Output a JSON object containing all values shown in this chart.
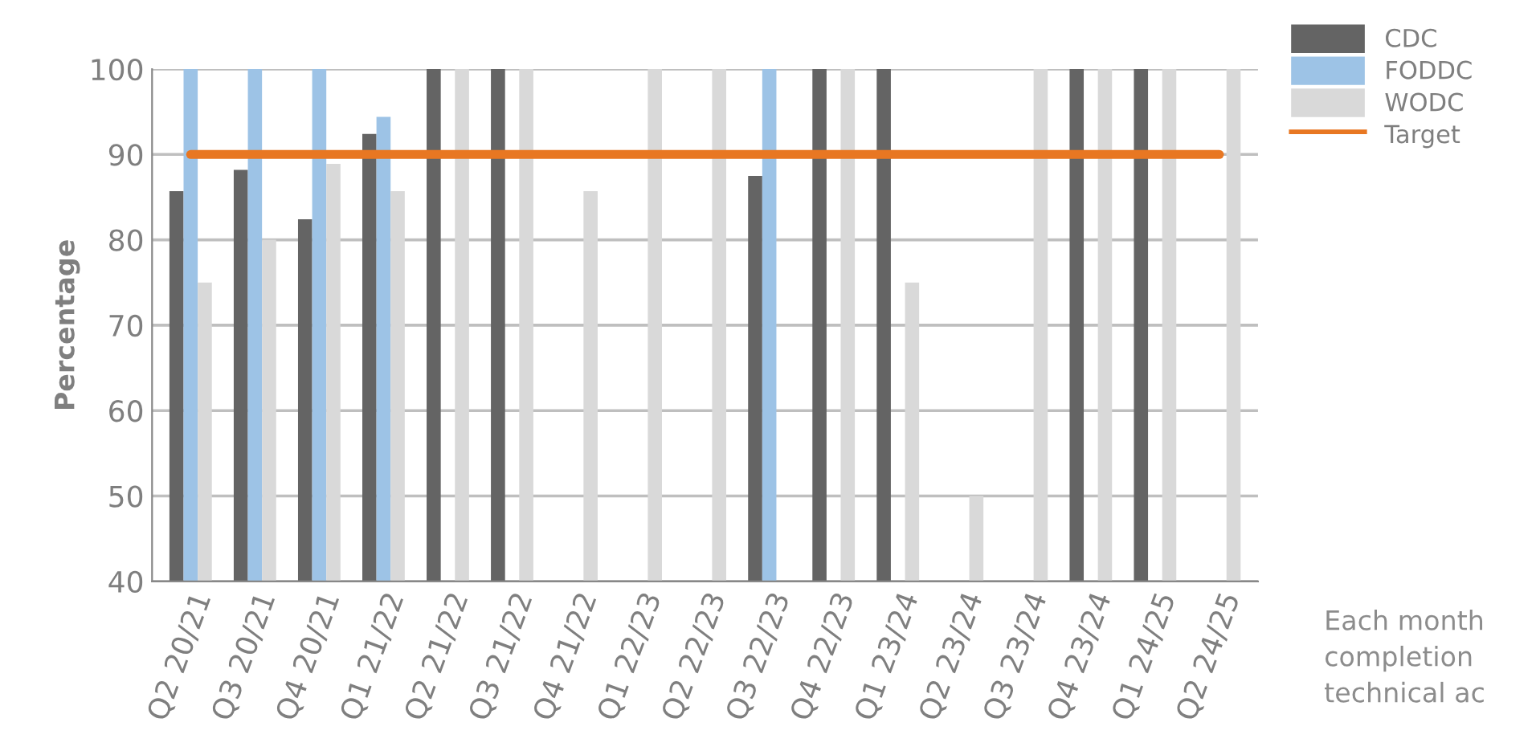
{
  "chart_data": {
    "type": "bar",
    "ylabel": "Percentage",
    "categories": [
      "Q2 20/21",
      "Q3 20/21",
      "Q4 20/21",
      "Q1 21/22",
      "Q2 21/22",
      "Q3 21/22",
      "Q4 21/22",
      "Q1 22/23",
      "Q2 22/23",
      "Q3 22/23",
      "Q4 22/23",
      "Q1 23/24",
      "Q2 23/24",
      "Q3 23/24",
      "Q4 23/24",
      "Q1 24/25",
      "Q2 24/25"
    ],
    "series": [
      {
        "name": "CDC",
        "color": "#646464",
        "values": [
          85.7,
          88.2,
          82.4,
          92.4,
          100,
          100,
          null,
          null,
          null,
          87.5,
          100,
          100,
          null,
          null,
          100,
          100,
          null
        ]
      },
      {
        "name": "FODDC",
        "color": "#9dc3e6",
        "values": [
          100,
          100,
          100,
          94.4,
          null,
          null,
          null,
          null,
          null,
          100,
          null,
          null,
          null,
          null,
          null,
          null,
          null
        ]
      },
      {
        "name": "WODC",
        "color": "#d9d9d9",
        "values": [
          75,
          80,
          88.9,
          85.7,
          100,
          100,
          85.7,
          100,
          100,
          null,
          100,
          75,
          50,
          100,
          100,
          100,
          100
        ]
      },
      {
        "name": "Target",
        "type": "line",
        "color": "#e87722",
        "values": [
          90,
          90,
          90,
          90,
          90,
          90,
          90,
          90,
          90,
          90,
          90,
          90,
          90,
          90,
          90,
          90,
          90
        ]
      }
    ],
    "ylim": [
      40,
      100
    ],
    "yticks": [
      40,
      50,
      60,
      70,
      80,
      90,
      100
    ],
    "grid": "y",
    "legend": "top right",
    "annotations": [
      "Each month\ncompletion\ntechnical ac"
    ]
  }
}
